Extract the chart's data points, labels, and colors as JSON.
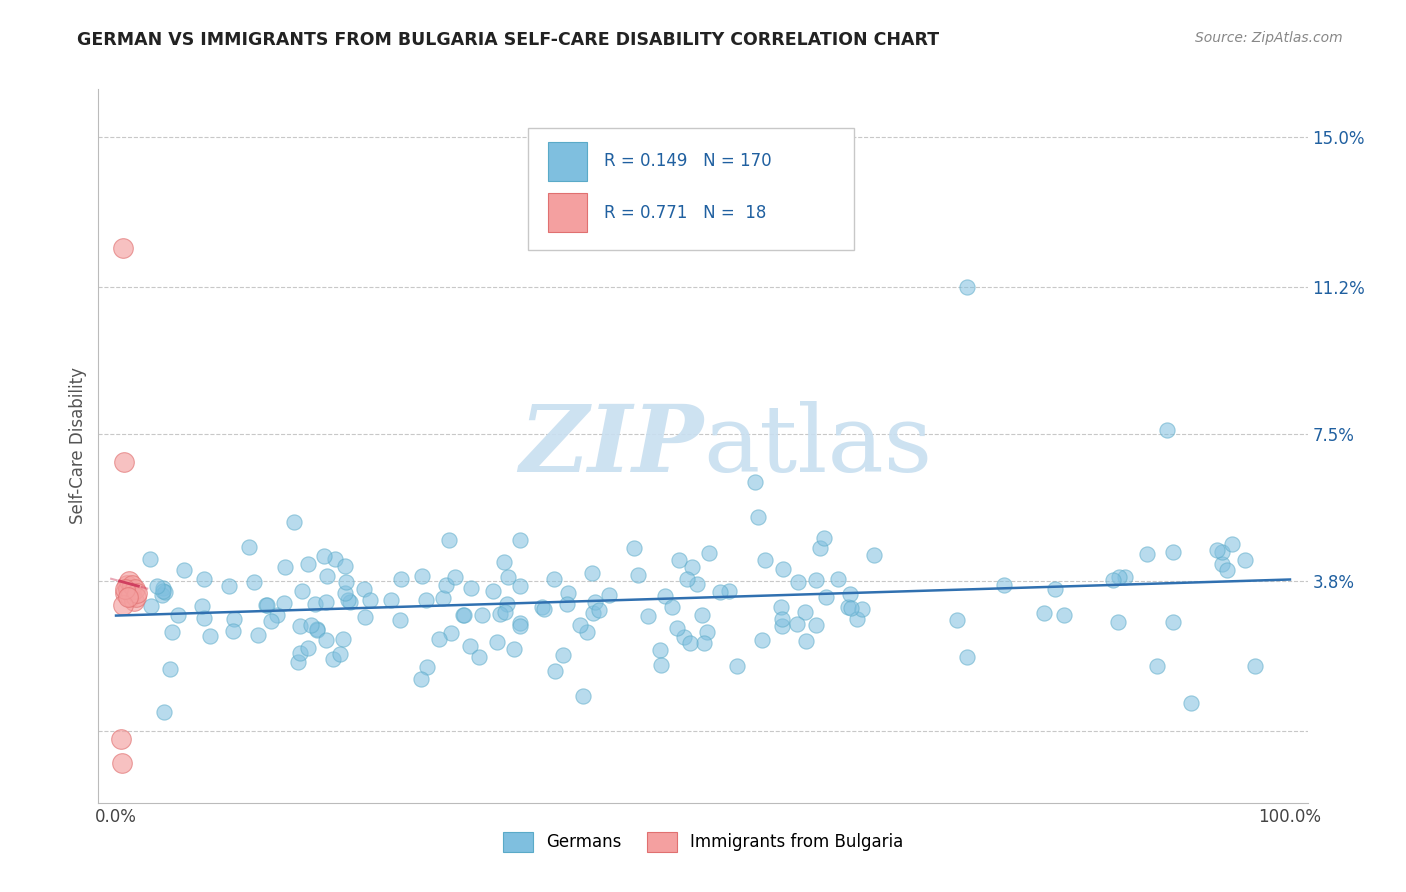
{
  "title": "GERMAN VS IMMIGRANTS FROM BULGARIA SELF-CARE DISABILITY CORRELATION CHART",
  "source": "Source: ZipAtlas.com",
  "ylabel": "Self-Care Disability",
  "xlim": [
    -0.015,
    1.015
  ],
  "ylim": [
    -0.018,
    0.162
  ],
  "xtick_positions": [
    0.0,
    1.0
  ],
  "xtick_labels": [
    "0.0%",
    "100.0%"
  ],
  "ytick_positions": [
    0.0,
    0.038,
    0.075,
    0.112,
    0.15
  ],
  "ytick_labels": [
    "",
    "3.8%",
    "7.5%",
    "11.2%",
    "15.0%"
  ],
  "legend_blue_R": "0.149",
  "legend_blue_N": "170",
  "legend_pink_R": "0.771",
  "legend_pink_N": "18",
  "blue_scatter_color": "#7fbfdf",
  "blue_edge_color": "#5aaac8",
  "pink_scatter_color": "#f4a0a0",
  "pink_edge_color": "#e07070",
  "blue_line_color": "#3070b0",
  "pink_line_color": "#d04060",
  "watermark_color": "#c8dff0",
  "background_color": "#ffffff",
  "grid_color": "#c8c8c8",
  "legend_label_blue": "Germans",
  "legend_label_pink": "Immigrants from Bulgaria",
  "title_color": "#222222",
  "axis_label_color": "#555555",
  "tick_color": "#2060a0",
  "r_n_color": "#2060a0",
  "legend_box_edge": "#c8c8c8",
  "source_color": "#888888"
}
